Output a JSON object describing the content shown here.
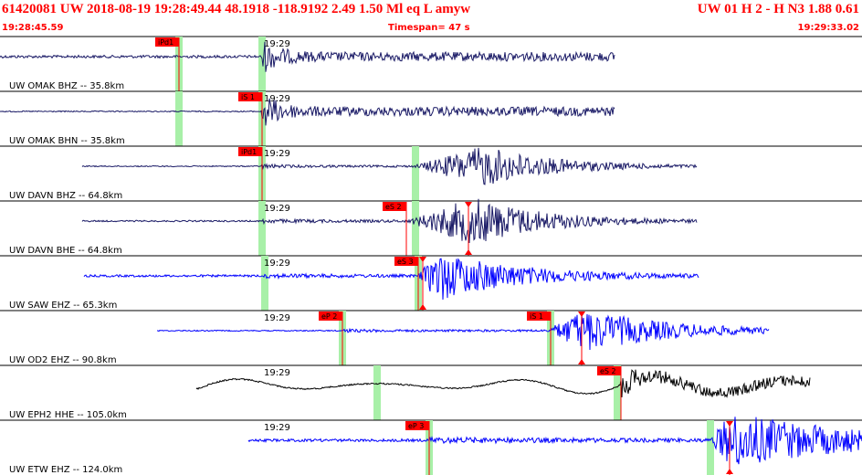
{
  "header": {
    "event_line": "61420081 UW 2018-08-19 19:28:49.44   48.1918 -118.9192   2.49  1.50 Ml  eq  L amyw",
    "right_line": "UW 01  H  2  -  H N3    1.88  0.61",
    "start_time": "19:28:45.59",
    "timespan": "Timespan=  47 s",
    "end_time": "19:29:33.02"
  },
  "colors": {
    "header": "#ff0000",
    "pick": "#ff0000",
    "window": "#a8f0a8",
    "black": "#000000",
    "navy": "#1a1a66",
    "blue": "#0000ff"
  },
  "minute_label": "19:29",
  "traces": [
    {
      "label": "UW OMAK BHZ -- 35.8km",
      "color": "navy",
      "start": 0,
      "end": 673,
      "noise": 1.5,
      "onset": 287,
      "amp": 20,
      "coda": 5,
      "decay": 110,
      "osc": 0,
      "win": [
        196,
        287
      ],
      "picks": [
        {
          "text": "iPd1",
          "x": 196,
          "lead": true
        }
      ]
    },
    {
      "label": "UW OMAK BHN -- 35.8km",
      "color": "navy",
      "start": 0,
      "end": 673,
      "noise": 0.6,
      "onset": 287,
      "amp": 22,
      "coda": 5,
      "decay": 110,
      "osc": 0,
      "win": [
        196,
        287
      ],
      "picks": [
        {
          "text": "iS 1",
          "x": 287,
          "lead": true
        }
      ]
    },
    {
      "label": "UW DAVN BHZ -- 64.8km",
      "color": "navy",
      "start": 90,
      "end": 763,
      "noise": 0.6,
      "onset": 287,
      "amp": 3,
      "coda": 1.2,
      "decay": 150,
      "osc": 0,
      "win": [
        287,
        455
      ],
      "burst": [
        452,
        530,
        22,
        170
      ],
      "picks": [
        {
          "text": "iPd1",
          "x": 287,
          "lead": true
        }
      ]
    },
    {
      "label": "UW DAVN BHE -- 64.8km",
      "color": "navy",
      "start": 90,
      "end": 763,
      "noise": 0.8,
      "onset": 287,
      "amp": 3,
      "coda": 1.5,
      "decay": 150,
      "osc": 0,
      "win": [
        287,
        455
      ],
      "burst": [
        445,
        520,
        26,
        170
      ],
      "picks": [
        {
          "text": "eS 2",
          "x": 445,
          "lead": true
        },
        {
          "text": "",
          "x": 513,
          "lead": false
        }
      ]
    },
    {
      "label": "UW SAW EHZ -- 65.3km",
      "color": "blue",
      "start": 92,
      "end": 765,
      "noise": 1.2,
      "onset": 290,
      "amp": 3,
      "coda": 1.5,
      "decay": 130,
      "osc": 0,
      "win": [
        290,
        458
      ],
      "burst": [
        458,
        480,
        27,
        190
      ],
      "picks": [
        {
          "text": "eS 3",
          "x": 458,
          "lead": true
        },
        {
          "text": "",
          "x": 463,
          "lead": false
        }
      ]
    },
    {
      "label": "UW OD2 EHZ -- 90.8km",
      "color": "blue",
      "start": 172,
      "end": 842,
      "noise": 0.6,
      "onset": 375,
      "amp": 2.5,
      "coda": 1.2,
      "decay": 160,
      "osc": 0,
      "win": [
        375,
        603
      ],
      "burst": [
        598,
        640,
        23,
        210
      ],
      "picks": [
        {
          "text": "eP 2",
          "x": 375,
          "lead": true
        },
        {
          "text": "iS 1",
          "x": 603,
          "lead": true
        },
        {
          "text": "",
          "x": 637,
          "lead": false
        }
      ]
    },
    {
      "label": "UW EPH2 HHE -- 105.0km",
      "color": "black",
      "start": 215,
      "end": 887,
      "noise": 0.8,
      "onset": 680,
      "amp": 18,
      "coda": 6,
      "decay": 230,
      "osc": 10,
      "win": [
        413,
        676
      ],
      "picks": [
        {
          "text": "eS 2",
          "x": 680,
          "lead": true
        }
      ]
    },
    {
      "label": "UW ETW EHZ -- 124.0km",
      "color": "blue",
      "start": 272,
      "end": 944,
      "noise": 1.5,
      "onset": 470,
      "amp": 3,
      "coda": 2,
      "decay": 250,
      "osc": 0,
      "win": [
        470,
        778
      ],
      "burst": [
        778,
        800,
        30,
        300
      ],
      "picks": [
        {
          "text": "eP 3",
          "x": 470,
          "lead": true
        },
        {
          "text": "",
          "x": 799,
          "lead": false
        }
      ]
    }
  ]
}
